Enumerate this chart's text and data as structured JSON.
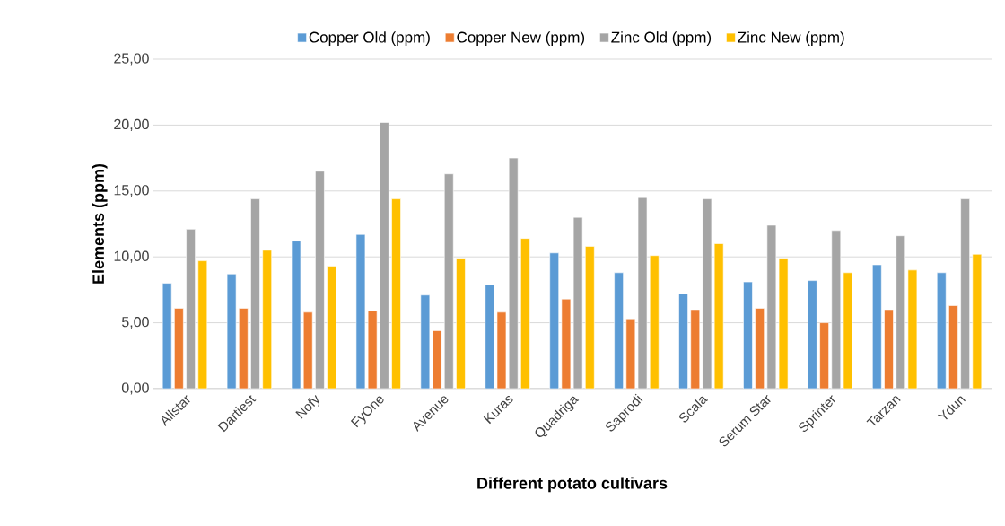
{
  "chart_data": {
    "type": "bar",
    "xlabel": "Different potato cultivars",
    "ylabel": "Elements (ppm)",
    "categories": [
      "Allstar",
      "Dartiest",
      "Nofy",
      "FyOne",
      "Avenue",
      "Kuras",
      "Quadriga",
      "Saprodi",
      "Scala",
      "Serum Star",
      "Sprinter",
      "Tarzan",
      "Ydun"
    ],
    "series": [
      {
        "name": "Copper Old (ppm)",
        "color": "#5b9bd5",
        "values": [
          8.0,
          8.7,
          11.2,
          11.7,
          7.1,
          7.9,
          10.3,
          8.8,
          7.2,
          8.1,
          8.2,
          9.4,
          8.8
        ]
      },
      {
        "name": "Copper New (ppm)",
        "color": "#ed7d31",
        "values": [
          6.1,
          6.1,
          5.8,
          5.9,
          4.4,
          5.8,
          6.8,
          5.3,
          6.0,
          6.1,
          5.0,
          6.0,
          6.3
        ]
      },
      {
        "name": "Zinc Old (ppm)",
        "color": "#a5a5a5",
        "values": [
          12.1,
          14.4,
          16.5,
          20.2,
          16.3,
          17.5,
          13.0,
          14.5,
          14.4,
          12.4,
          12.0,
          11.6,
          14.4
        ]
      },
      {
        "name": "Zinc New (ppm)",
        "color": "#ffc000",
        "values": [
          9.7,
          10.5,
          9.3,
          14.4,
          9.9,
          11.4,
          10.8,
          10.1,
          11.0,
          9.9,
          8.8,
          9.0,
          10.2
        ]
      }
    ],
    "ylim": [
      0,
      25
    ],
    "yticks": [
      {
        "value": 0,
        "label": "0,00"
      },
      {
        "value": 5,
        "label": "5,00"
      },
      {
        "value": 10,
        "label": "10,00"
      },
      {
        "value": 15,
        "label": "15,00"
      },
      {
        "value": 20,
        "label": "20,00"
      },
      {
        "value": 25,
        "label": "25,00"
      }
    ],
    "grid": "y",
    "legend": "top"
  }
}
